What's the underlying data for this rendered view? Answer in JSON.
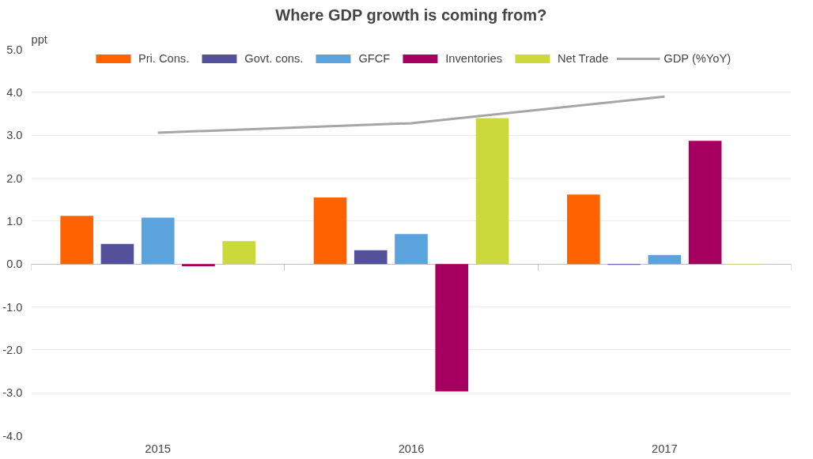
{
  "chart_data": {
    "type": "bar",
    "title": "Where GDP growth is coming from?",
    "ylabel": "ppt",
    "categories": [
      "2015",
      "2016",
      "2017"
    ],
    "series": [
      {
        "name": "Pri. Cons.",
        "color": "#ff6200",
        "values": [
          1.12,
          1.55,
          1.62
        ]
      },
      {
        "name": "Govt. cons.",
        "color": "#525199",
        "values": [
          0.47,
          0.32,
          -0.02
        ]
      },
      {
        "name": "GFCF",
        "color": "#5ba3dd",
        "values": [
          1.08,
          0.7,
          0.21
        ]
      },
      {
        "name": "Inventories",
        "color": "#a50060",
        "values": [
          -0.05,
          -2.97,
          2.87
        ]
      },
      {
        "name": "Net Trade",
        "color": "#ccd93b",
        "values": [
          0.53,
          3.4,
          -0.01
        ]
      },
      {
        "name": "GDP (%YoY)",
        "type": "line",
        "color": "#a6a6a6",
        "values": [
          3.06,
          3.28,
          3.9
        ]
      }
    ],
    "ylim": [
      -4.0,
      5.0
    ],
    "yticks": [
      {
        "value": -4,
        "label": "-4.0"
      },
      {
        "value": -3,
        "label": "-3.0"
      },
      {
        "value": -2,
        "label": "-2.0"
      },
      {
        "value": -1,
        "label": "-1.0"
      },
      {
        "value": 0,
        "label": "0.0"
      },
      {
        "value": 1,
        "label": "1.0"
      },
      {
        "value": 2,
        "label": "2.0"
      },
      {
        "value": 3,
        "label": "3.0"
      },
      {
        "value": 4,
        "label": "4.0"
      },
      {
        "value": 5,
        "label": "5.0"
      }
    ],
    "legend": "top",
    "grid": "y"
  }
}
